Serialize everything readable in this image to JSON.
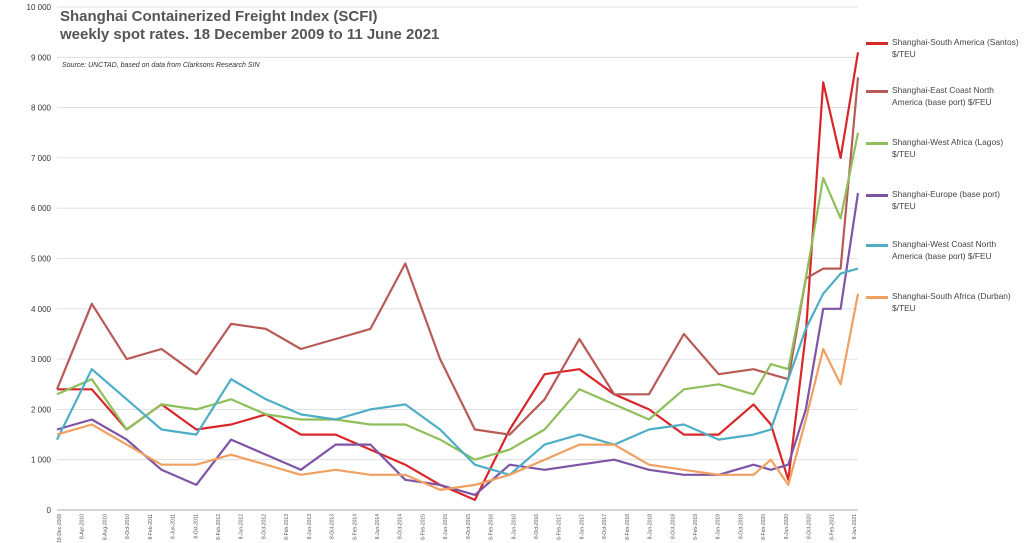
{
  "chart_data": {
    "type": "line",
    "title": "Shanghai Containerized Freight Index (SCFI)",
    "subtitle": "weekly spot rates. 18 December 2009 to 11 June 2021",
    "source": "Source: UNCTAD, based on data from Clarksons Research SIN",
    "ylim": [
      0,
      10000
    ],
    "y_ticks": [
      "0",
      "1 000",
      "2 000",
      "3 000",
      "4 000",
      "5 000",
      "6 000",
      "7 000",
      "8 000",
      "9 000",
      "10 000"
    ],
    "x_tick_labels": [
      "18-Dec-2009",
      "8-Apr-2010",
      "8-Aug-2010",
      "8-Oct-2010",
      "8-Feb-2011",
      "8-Jun-2011",
      "8-Oct-2011",
      "8-Feb-2012",
      "8-Jun-2012",
      "8-Oct-2012",
      "8-Feb-2013",
      "8-Jun-2013",
      "8-Oct-2013",
      "8-Feb-2014",
      "8-Jun-2014",
      "8-Oct-2014",
      "8-Feb-2015",
      "8-Jun-2015",
      "8-Oct-2015",
      "8-Feb-2016",
      "8-Jun-2016",
      "8-Oct-2016",
      "8-Feb-2017",
      "8-Jun-2017",
      "8-Oct-2017",
      "8-Feb-2018",
      "8-Jun-2018",
      "8-Oct-2018",
      "8-Feb-2019",
      "8-Jun-2019",
      "8-Oct-2019",
      "8-Feb-2020",
      "8-Jun-2020",
      "8-Oct-2020",
      "8-Feb-2021",
      "8-Jun-2021"
    ],
    "x": [
      "2009-12",
      "2010-06",
      "2010-12",
      "2011-06",
      "2011-12",
      "2012-06",
      "2012-12",
      "2013-06",
      "2013-12",
      "2014-06",
      "2014-12",
      "2015-06",
      "2015-12",
      "2016-06",
      "2016-12",
      "2017-06",
      "2017-12",
      "2018-06",
      "2018-12",
      "2019-06",
      "2019-12",
      "2020-03",
      "2020-06",
      "2020-09",
      "2020-12",
      "2021-03",
      "2021-06"
    ],
    "series": [
      {
        "name": "Shanghai-South America (Santos) $/TEU",
        "color": "#d8262a",
        "values": [
          2400,
          2400,
          1600,
          2100,
          1600,
          1700,
          1900,
          1500,
          1500,
          1200,
          900,
          500,
          200,
          1600,
          2700,
          2800,
          2300,
          2000,
          1500,
          1500,
          2100,
          1700,
          600,
          3500,
          8500,
          7000,
          9100
        ]
      },
      {
        "name": "Shanghai-East Coast North America (base port) $/FEU",
        "color": "#b85a56",
        "values": [
          2400,
          4100,
          3000,
          3200,
          2700,
          3700,
          3600,
          3200,
          3400,
          3600,
          4900,
          3000,
          1600,
          1500,
          2200,
          3400,
          2300,
          2300,
          3500,
          2700,
          2800,
          2700,
          2600,
          4600,
          4800,
          4800,
          8600
        ]
      },
      {
        "name": "Shanghai-West Africa (Lagos) $/TEU",
        "color": "#8fbf5a",
        "values": [
          2300,
          2600,
          1600,
          2100,
          2000,
          2200,
          1900,
          1800,
          1800,
          1700,
          1700,
          1400,
          1000,
          1200,
          1600,
          2400,
          2100,
          1800,
          2400,
          2500,
          2300,
          2900,
          2800,
          4600,
          6600,
          5800,
          7500
        ]
      },
      {
        "name": "Shanghai-Europe (base port) $/TEU",
        "color": "#7d55a6",
        "values": [
          1600,
          1800,
          1400,
          800,
          500,
          1400,
          1100,
          800,
          1300,
          1300,
          600,
          500,
          300,
          900,
          800,
          900,
          1000,
          800,
          700,
          700,
          900,
          800,
          900,
          2000,
          4000,
          4000,
          6300
        ]
      },
      {
        "name": "Shanghai-West Coast  North America (base port) $/FEU",
        "color": "#4eaec6",
        "values": [
          1400,
          2800,
          2200,
          1600,
          1500,
          2600,
          2200,
          1900,
          1800,
          2000,
          2100,
          1600,
          900,
          700,
          1300,
          1500,
          1300,
          1600,
          1700,
          1400,
          1500,
          1600,
          2600,
          3600,
          4300,
          4700,
          4800
        ]
      },
      {
        "name": "Shanghai-South Africa (Durban) $/TEU",
        "color": "#f0a060",
        "values": [
          1500,
          1700,
          1300,
          900,
          900,
          1100,
          900,
          700,
          800,
          700,
          700,
          400,
          500,
          700,
          1000,
          1300,
          1300,
          900,
          800,
          700,
          700,
          1000,
          500,
          1800,
          3200,
          2500,
          4300
        ]
      }
    ]
  }
}
